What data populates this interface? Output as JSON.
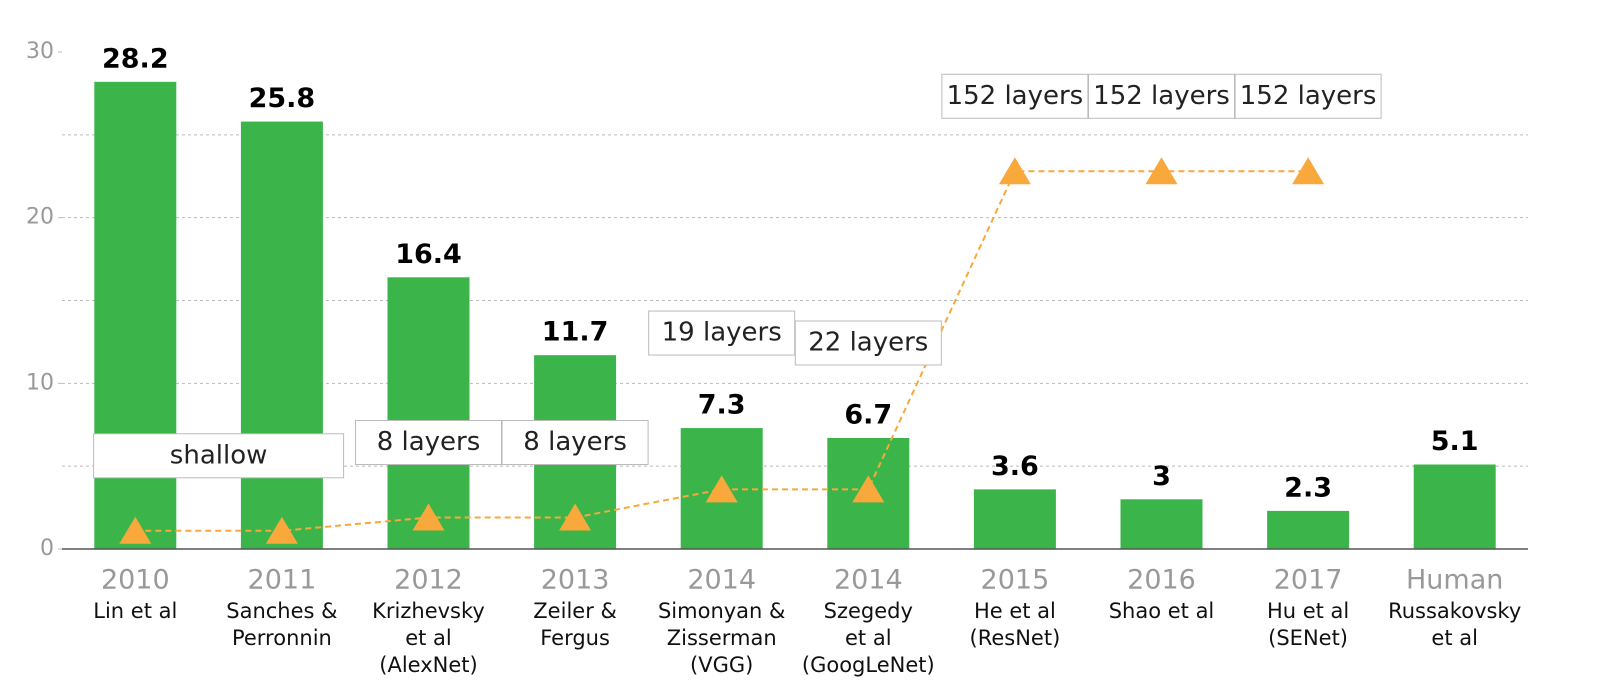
{
  "chart_data": {
    "type": "bar",
    "categories": [
      "2010",
      "2011",
      "2012",
      "2013",
      "2014",
      "2014",
      "2015",
      "2016",
      "2017",
      "Human"
    ],
    "sublabels": [
      [
        "Lin et al"
      ],
      [
        "Sanches &",
        "Perronnin"
      ],
      [
        "Krizhevsky",
        "et al",
        "(AlexNet)"
      ],
      [
        "Zeiler &",
        "Fergus"
      ],
      [
        "Simonyan &",
        "Zisserman",
        "(VGG)"
      ],
      [
        "Szegedy",
        "et al",
        "(GoogLeNet)"
      ],
      [
        "He et al",
        "(ResNet)"
      ],
      [
        "Shao et al"
      ],
      [
        "Hu et al",
        "(SENet)"
      ],
      [
        "Russakovsky",
        "et al"
      ]
    ],
    "values": [
      28.2,
      25.8,
      16.4,
      11.7,
      7.3,
      6.7,
      3.6,
      3,
      2.3,
      5.1
    ],
    "color": "#3bb54a",
    "series": [
      {
        "type": "line",
        "color": "#f9a83b",
        "values": [
          1.1,
          1.1,
          1.9,
          1.9,
          3.6,
          3.6,
          22.8,
          22.8,
          22.8,
          null
        ]
      }
    ],
    "annotations": [
      "shallow",
      null,
      "8 layers",
      "8 layers",
      "19 layers",
      "22 layers",
      "152 layers",
      "152 layers",
      "152 layers",
      null
    ],
    "ylim": [
      0,
      30
    ],
    "yticks": [
      0,
      10,
      20,
      30
    ],
    "ygrid": [
      5,
      10,
      15,
      20,
      25
    ],
    "grid": true
  }
}
